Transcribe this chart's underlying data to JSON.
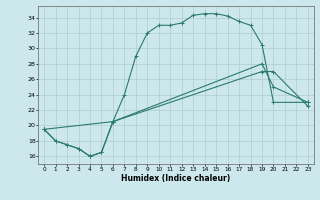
{
  "xlabel": "Humidex (Indice chaleur)",
  "bg_color": "#cde8ec",
  "grid_color": "#aecdd2",
  "line_color": "#2a7a6e",
  "xlim": [
    -0.5,
    23.5
  ],
  "ylim": [
    15,
    35.5
  ],
  "xticks": [
    0,
    1,
    2,
    3,
    4,
    5,
    6,
    7,
    8,
    9,
    10,
    11,
    12,
    13,
    14,
    15,
    16,
    17,
    18,
    19,
    20,
    21,
    22,
    23
  ],
  "yticks": [
    16,
    18,
    20,
    22,
    24,
    26,
    28,
    30,
    32,
    34
  ],
  "curve1_x": [
    0,
    1,
    2,
    3,
    4,
    5,
    6,
    7,
    8,
    9,
    10,
    11,
    12,
    13,
    14,
    15,
    16,
    17,
    18,
    19,
    20,
    23
  ],
  "curve1_y": [
    19.5,
    18,
    17.5,
    17,
    16,
    16.5,
    20.5,
    24,
    29,
    32,
    33,
    33,
    33.3,
    34.3,
    34.5,
    34.5,
    34.2,
    33.5,
    33,
    30.5,
    23,
    23
  ],
  "curve2_x": [
    0,
    1,
    2,
    3,
    4,
    5,
    6,
    19,
    20,
    23
  ],
  "curve2_y": [
    19.5,
    18,
    17.5,
    17,
    16,
    16.5,
    20.5,
    28,
    25,
    23
  ],
  "curve3_x": [
    0,
    6,
    19,
    20,
    23
  ],
  "curve3_y": [
    19.5,
    20.5,
    27,
    27,
    22.5
  ]
}
